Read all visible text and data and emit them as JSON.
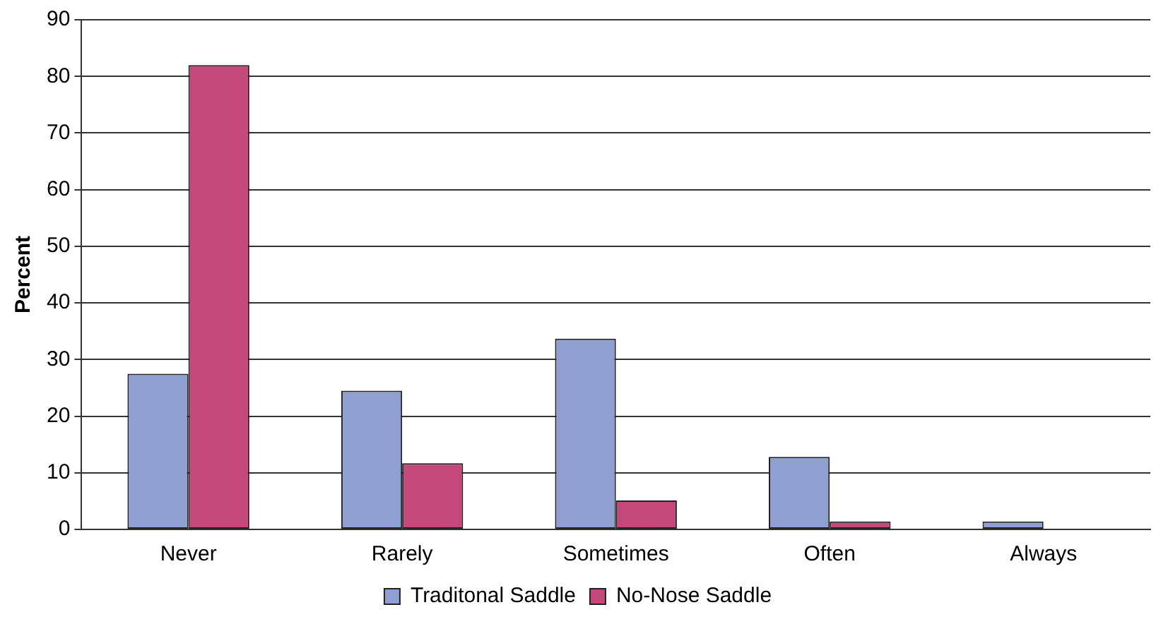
{
  "chart_data": {
    "type": "bar",
    "ylabel": "Percent",
    "categories": [
      "Never",
      "Rarely",
      "Sometimes",
      "Often",
      "Always"
    ],
    "series": [
      {
        "name": "Traditonal Saddle",
        "color": "#8e9fd0",
        "values": [
          27.5,
          24.5,
          33.7,
          12.8,
          1.4
        ]
      },
      {
        "name": "No-Nose Saddle",
        "color": "#c4487a",
        "values": [
          82,
          11.7,
          5.1,
          1.4,
          null
        ]
      }
    ],
    "ylim": [
      0,
      90
    ],
    "yticks": [
      0,
      10,
      20,
      30,
      40,
      50,
      60,
      70,
      80,
      90
    ],
    "grid": "y",
    "legend": "bottom"
  }
}
